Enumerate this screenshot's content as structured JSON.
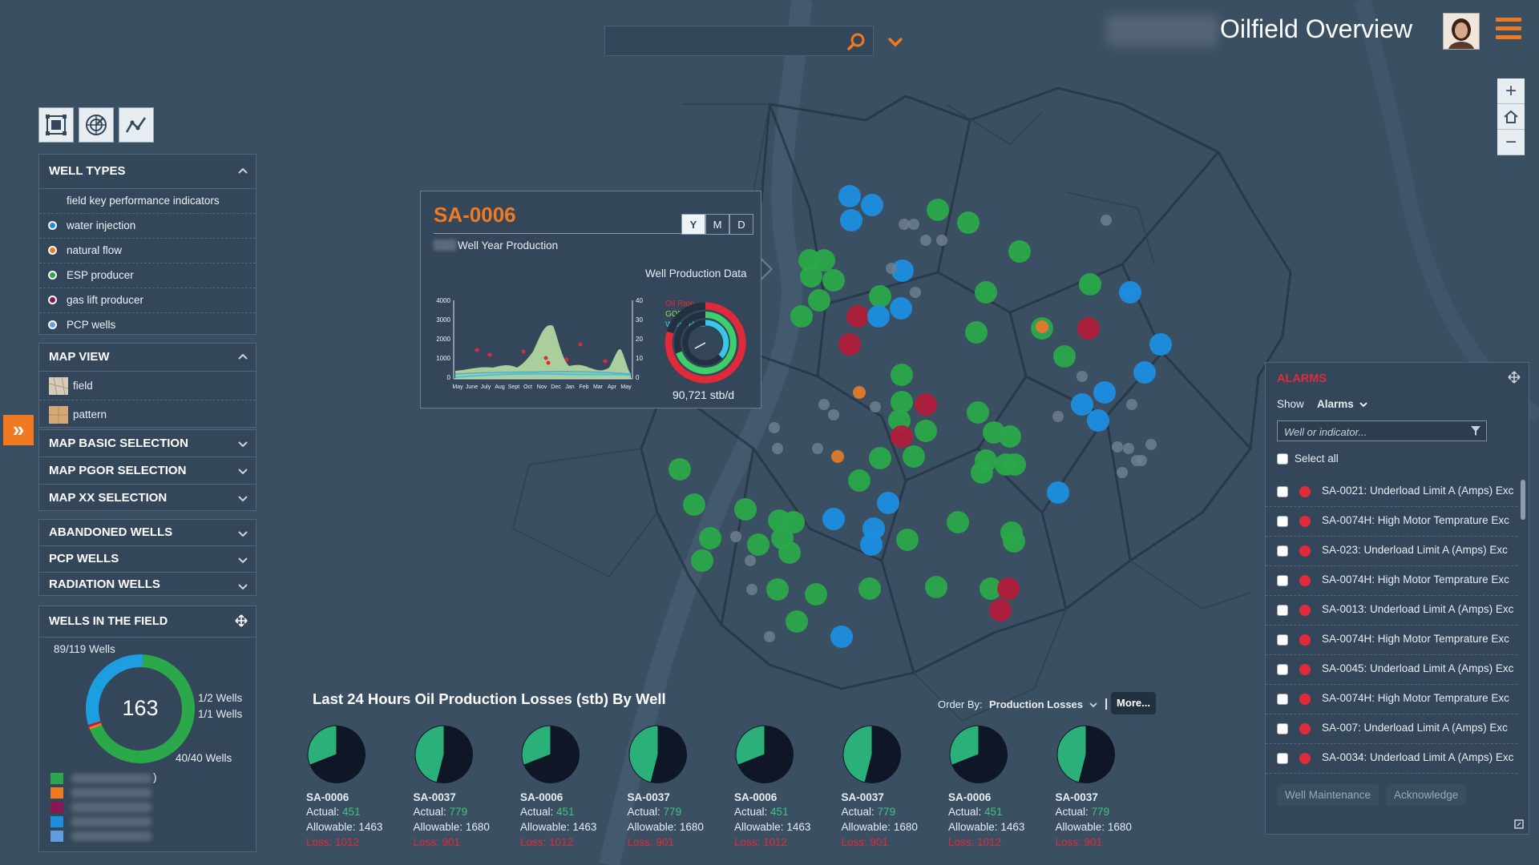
{
  "header": {
    "title": "Oilfield Overview",
    "search_placeholder": "",
    "search_value": ""
  },
  "colors": {
    "accent": "#f07a22",
    "water_injection": "#1c8ee0",
    "natural_flow": "#e07a2a",
    "esp_producer": "#2aa84a",
    "gas_lift_producer": "#b01e3a",
    "pcp_wells": "#5f9de0",
    "alarm_red": "#e02a3a"
  },
  "toolbar": {
    "tools": [
      {
        "name": "select-area-icon"
      },
      {
        "name": "radar-icon"
      },
      {
        "name": "trend-icon"
      }
    ]
  },
  "zoom": {
    "plus": "+",
    "home": "⌂",
    "minus": "−"
  },
  "well_types": {
    "title": "WELL TYPES",
    "items": [
      {
        "label": "field key performance indicators",
        "dot": ""
      },
      {
        "label": "water injection",
        "dot": "#1c8ee0"
      },
      {
        "label": "natural flow",
        "dot": "#f07a22"
      },
      {
        "label": "ESP producer",
        "dot": "#2aa84a"
      },
      {
        "label": "gas lift producer",
        "dot": "#8a1550"
      },
      {
        "label": "PCP wells",
        "dot": "#5f9de0"
      }
    ]
  },
  "map_view": {
    "title": "MAP VIEW",
    "items": [
      {
        "label": "field"
      },
      {
        "label": "pattern"
      }
    ]
  },
  "selections": [
    "MAP BASIC SELECTION",
    "MAP PGOR SELECTION",
    "MAP XX SELECTION"
  ],
  "well_groups": [
    "ABANDONED WELLS",
    "PCP WELLS",
    "RADIATION WELLS"
  ],
  "wells_in_field": {
    "title": "WELLS IN THE FIELD",
    "count_top": "89/119 Wells",
    "center": "163",
    "right_1": "1/2 Wells",
    "right_2": "1/1 Wells",
    "bottom": "40/40 Wells",
    "legend_close": ")",
    "legend_colors": [
      "#2aa84a",
      "#f07a22",
      "#8a1550",
      "#1c8ee0",
      "#5f9de0"
    ],
    "ring": [
      {
        "value": 89,
        "color": "#2aa84a"
      },
      {
        "value": 1,
        "color": "#f07a22"
      },
      {
        "value": 1,
        "color": "#c01e3a"
      },
      {
        "value": 40,
        "color": "#1c9ee0"
      }
    ]
  },
  "popup": {
    "title": "SA-0006",
    "tabs": [
      "Y",
      "M",
      "D"
    ],
    "active_tab": "Y",
    "subtitle": "Well Year Production",
    "data_label": "Well Production Data",
    "rate": "90,721 stb/d",
    "mini_chart": {
      "y_left": [
        "4000",
        "3000",
        "2000",
        "1000",
        "0"
      ],
      "y_right": [
        "40",
        "30",
        "20",
        "10",
        "0"
      ],
      "x": [
        "May",
        "June",
        "July",
        "Aug",
        "Sept",
        "Oct",
        "Nov",
        "Dec",
        "Jan",
        "Feb",
        "Mar",
        "Apr",
        "May"
      ]
    },
    "legend": [
      {
        "label": "Oil Rate",
        "color": "#e02a3a"
      },
      {
        "label": "GOR",
        "color": "#8ee04a"
      },
      {
        "label": "Water Rate",
        "color": "#3ac6e8"
      }
    ]
  },
  "losses": {
    "title": "Last 24 Hours Oil Production Losses (stb) By Well",
    "order_by_label": "Order By:",
    "order_by_value": "Production Losses",
    "separator": "|",
    "more": "More...",
    "actual_label": "Actual:",
    "allowable_label": "Allowable:",
    "wells": [
      {
        "name": "SA-0006",
        "actual": "451",
        "allowable": "1463",
        "loss": "Loss: 1012",
        "share": 0.31
      },
      {
        "name": "SA-0037",
        "actual": "779",
        "allowable": "1680",
        "loss": "Loss: 901",
        "share": 0.46
      },
      {
        "name": "SA-0006",
        "actual": "451",
        "allowable": "1463",
        "loss": "Loss: 1012",
        "share": 0.31
      },
      {
        "name": "SA-0037",
        "actual": "779",
        "allowable": "1680",
        "loss": "Loss: 901",
        "share": 0.46
      },
      {
        "name": "SA-0006",
        "actual": "451",
        "allowable": "1463",
        "loss": "Loss: 1012",
        "share": 0.31
      },
      {
        "name": "SA-0037",
        "actual": "779",
        "allowable": "1680",
        "loss": "Loss: 901",
        "share": 0.46
      },
      {
        "name": "SA-0006",
        "actual": "451",
        "allowable": "1463",
        "loss": "Loss: 1012",
        "share": 0.31
      },
      {
        "name": "SA-0037",
        "actual": "779",
        "allowable": "1680",
        "loss": "Loss: 901",
        "share": 0.46
      }
    ]
  },
  "alarms": {
    "title": "ALARMS",
    "show_label": "Show",
    "show_value": "Alarms",
    "filter_placeholder": "Well or indicator...",
    "select_all": "Select all",
    "items": [
      "SA-0021: Underload Limit A (Amps) Exc",
      "SA-0074H: High Motor Temprature Exc",
      "SA-023: Underload Limit A (Amps) Exc",
      "SA-0074H: High Motor Temprature Exc",
      "SA-0013: Underload Limit A (Amps) Exc",
      "SA-0074H: High Motor Temprature Exc",
      "SA-0045: Underload Limit A (Amps) Exc",
      "SA-0074H: High Motor Temprature Exc",
      "SA-007: Underload Limit A (Amps) Exc",
      "SA-0034: Underload Limit A (Amps) Exc"
    ],
    "btn_maintenance": "Well Maintenance",
    "btn_ack": "Acknowledge"
  }
}
